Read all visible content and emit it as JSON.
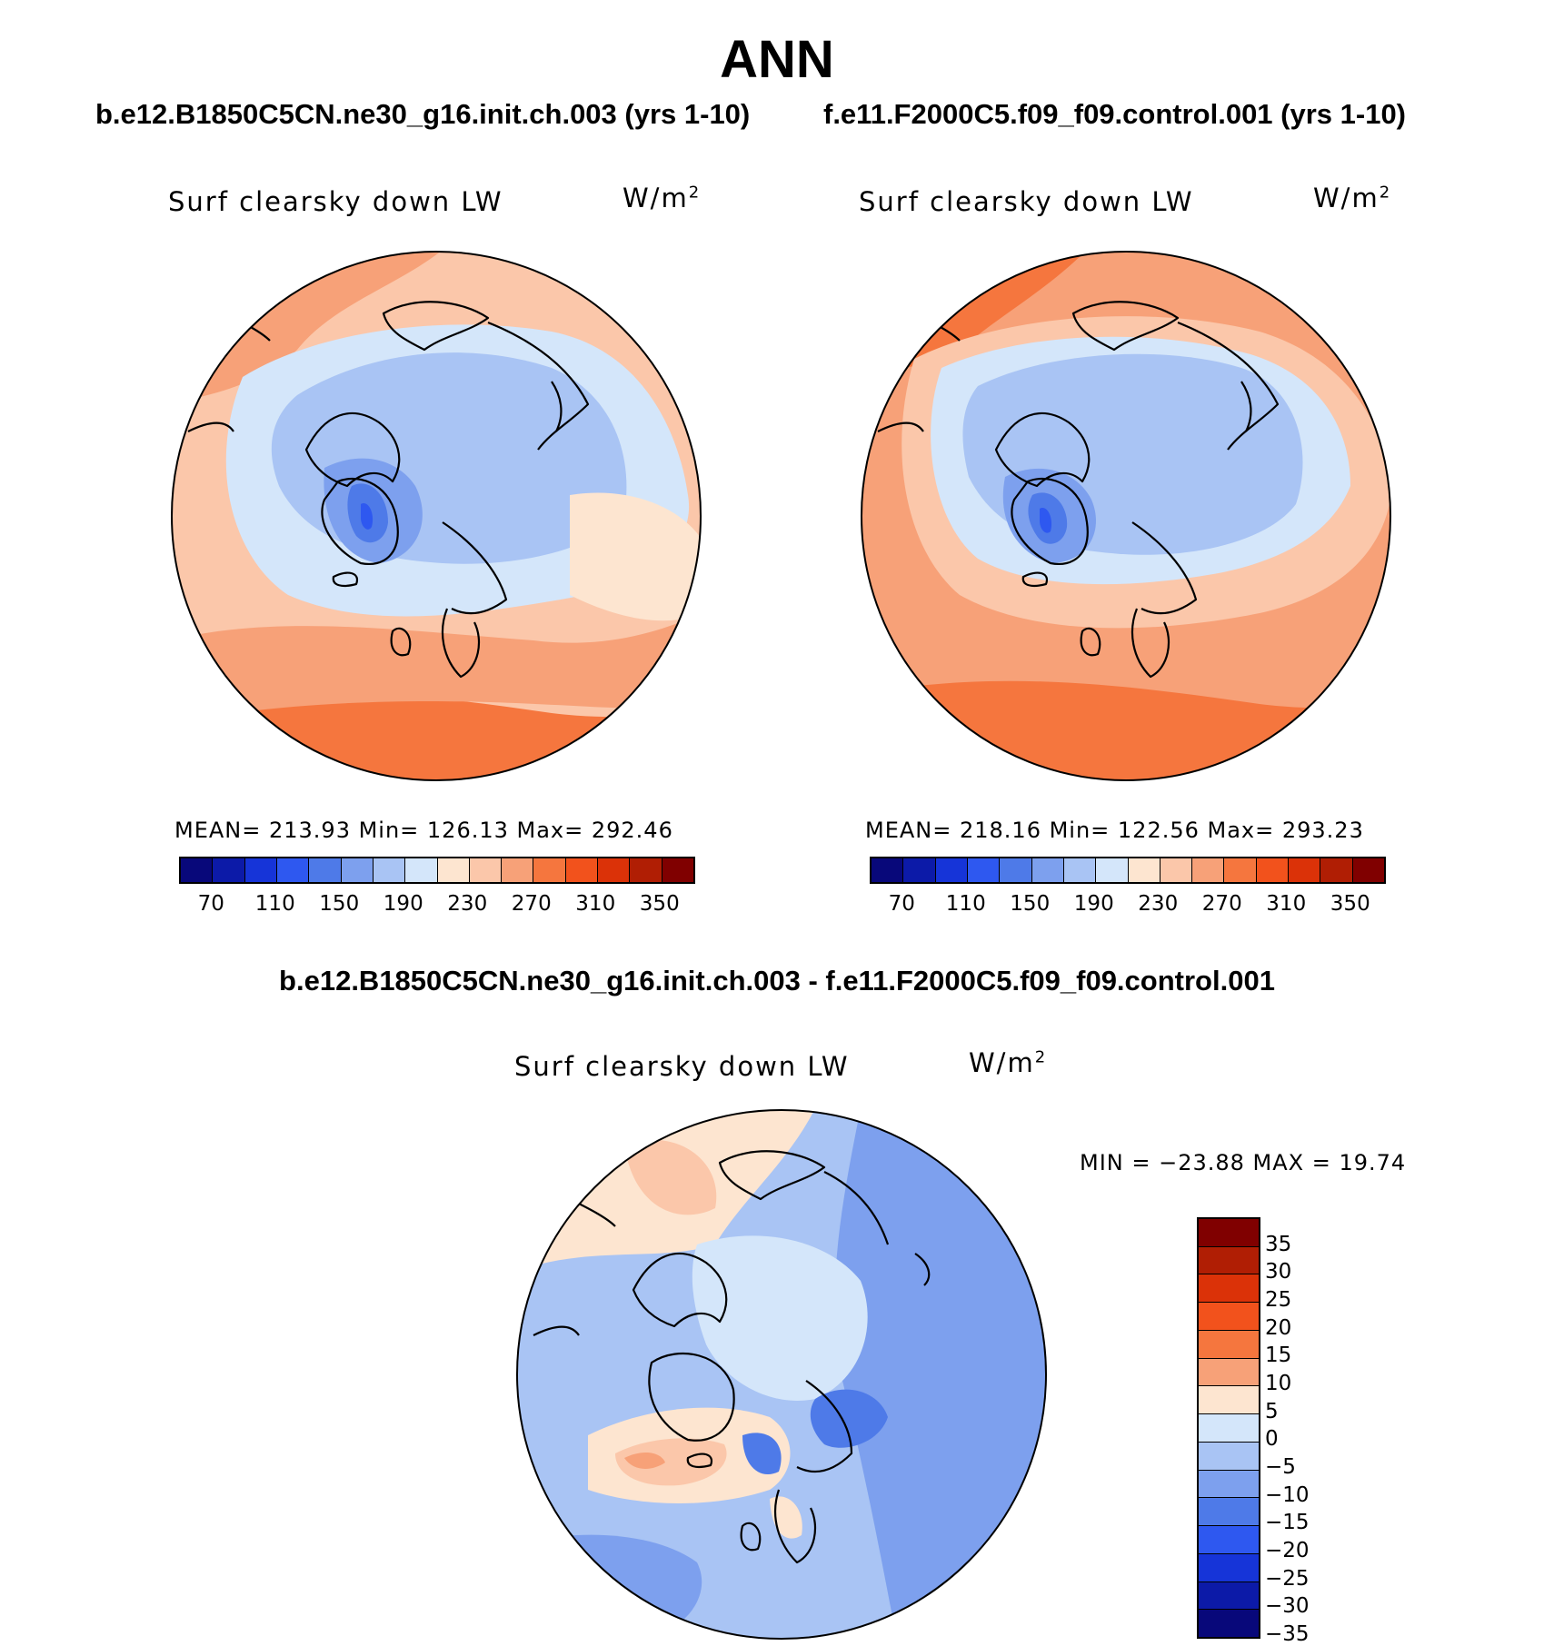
{
  "header": {
    "season": "ANN",
    "case_left": "b.e12.B1850C5CN.ne30_g16.init.ch.003 (yrs 1-10)",
    "case_right": "f.e11.F2000C5.f09_f09.control.001 (yrs 1-10)",
    "diff_title": "b.e12.B1850C5CN.ne30_g16.init.ch.003 - f.e11.F2000C5.f09_f09.control.001"
  },
  "panels": {
    "left": {
      "variable": "Surf clearsky down LW",
      "units_base": "W/m",
      "units_exp": "2",
      "stats": "MEAN= 213.93   Min= 126.13   Max= 292.46"
    },
    "right": {
      "variable": "Surf clearsky down LW",
      "units_base": "W/m",
      "units_exp": "2",
      "stats": "MEAN= 218.16   Min= 122.56   Max= 293.23"
    },
    "diff": {
      "variable": "Surf clearsky down LW",
      "units_base": "W/m",
      "units_exp": "2",
      "stats": "MIN = −23.88 MAX =   19.74"
    }
  },
  "colorbar_abs": {
    "colors": [
      "#08087a",
      "#0c1aa8",
      "#1634d8",
      "#2e58f0",
      "#4e7ae8",
      "#7da0ee",
      "#a9c4f4",
      "#d4e6fa",
      "#fde5d0",
      "#fbc7aa",
      "#f7a178",
      "#f5763e",
      "#f2521c",
      "#db3208",
      "#b01e04",
      "#800000"
    ],
    "labels": [
      "70",
      "110",
      "150",
      "190",
      "230",
      "270",
      "310",
      "350"
    ]
  },
  "colorbar_diff": {
    "colors": [
      "#800000",
      "#b01e04",
      "#db3208",
      "#f2521c",
      "#f5763e",
      "#f7a178",
      "#fde5d0",
      "#d4e6fa",
      "#a9c4f4",
      "#7da0ee",
      "#4e7ae8",
      "#2e58f0",
      "#1634d8",
      "#0c1aa8",
      "#08087a"
    ],
    "labels": [
      "35",
      "30",
      "25",
      "20",
      "15",
      "10",
      "5",
      "0",
      "−5",
      "−10",
      "−15",
      "−20",
      "−25",
      "−30",
      "−35"
    ]
  }
}
